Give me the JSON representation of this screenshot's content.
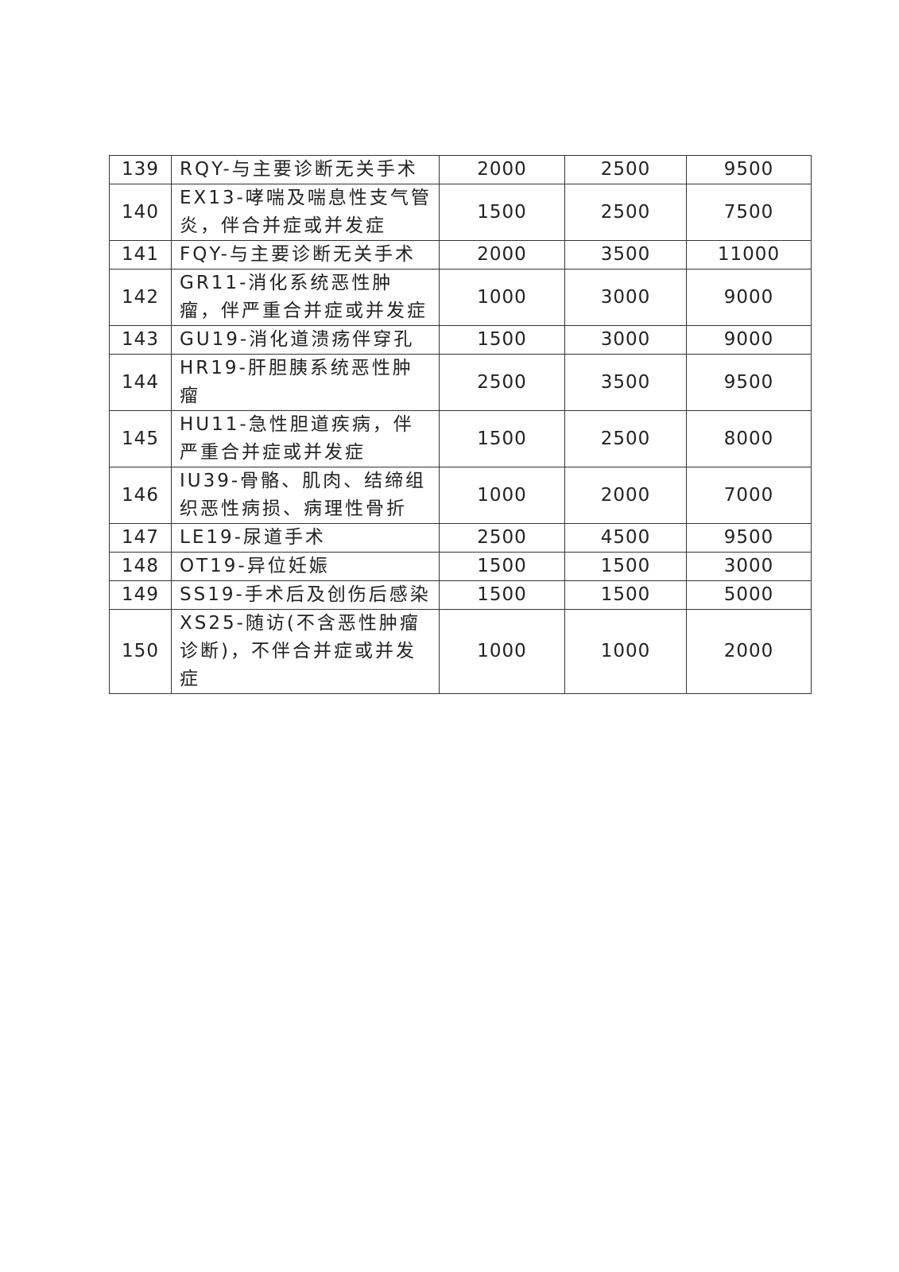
{
  "table": {
    "rows": [
      {
        "id": "139",
        "name": "RQY-与主要诊断无关手术",
        "v1": "2000",
        "v2": "2500",
        "v3": "9500"
      },
      {
        "id": "140",
        "name": "EX13-哮喘及喘息性支气管炎，伴合并症或并发症",
        "v1": "1500",
        "v2": "2500",
        "v3": "7500"
      },
      {
        "id": "141",
        "name": "FQY-与主要诊断无关手术",
        "v1": "2000",
        "v2": "3500",
        "v3": "11000"
      },
      {
        "id": "142",
        "name": "GR11-消化系统恶性肿瘤，伴严重合并症或并发症",
        "v1": "1000",
        "v2": "3000",
        "v3": "9000"
      },
      {
        "id": "143",
        "name": "GU19-消化道溃疡伴穿孔",
        "v1": "1500",
        "v2": "3000",
        "v3": "9000"
      },
      {
        "id": "144",
        "name": "HR19-肝胆胰系统恶性肿瘤",
        "v1": "2500",
        "v2": "3500",
        "v3": "9500"
      },
      {
        "id": "145",
        "name": "HU11-急性胆道疾病，伴严重合并症或并发症",
        "v1": "1500",
        "v2": "2500",
        "v3": "8000"
      },
      {
        "id": "146",
        "name": "IU39-骨骼、肌肉、结缔组织恶性病损、病理性骨折",
        "v1": "1000",
        "v2": "2000",
        "v3": "7000"
      },
      {
        "id": "147",
        "name": "LE19-尿道手术",
        "v1": "2500",
        "v2": "4500",
        "v3": "9500"
      },
      {
        "id": "148",
        "name": "OT19-异位妊娠",
        "v1": "1500",
        "v2": "1500",
        "v3": "3000"
      },
      {
        "id": "149",
        "name": "SS19-手术后及创伤后感染",
        "v1": "1500",
        "v2": "1500",
        "v3": "5000"
      },
      {
        "id": "150",
        "name": "XS25-随访(不含恶性肿瘤诊断)，不伴合并症或并发症",
        "v1": "1000",
        "v2": "1000",
        "v3": "2000"
      }
    ]
  }
}
